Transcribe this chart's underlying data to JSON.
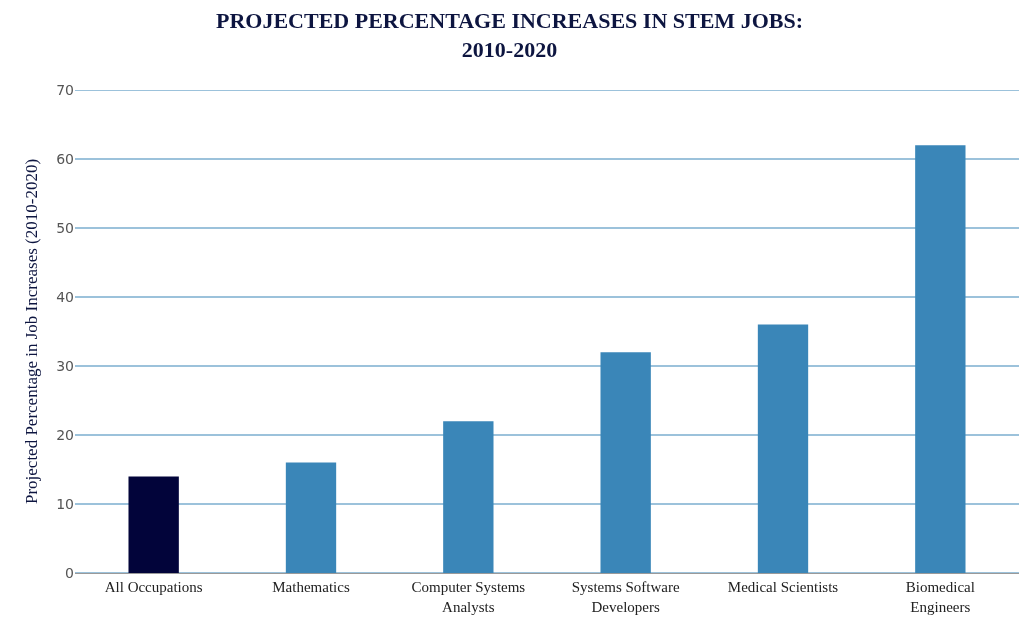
{
  "chart_data": {
    "type": "bar",
    "title": "PROJECTED PERCENTAGE INCREASES IN STEM JOBS: 2010-2020",
    "ylabel": "Projected Percentage in Job Increases (2010-2020)",
    "categories": [
      "All Occupations",
      "Mathematics",
      "Computer Systems Analysts",
      "Systems Software Developers",
      "Medical Scientists",
      "Biomedical Engineers"
    ],
    "values": [
      14,
      16,
      22,
      32,
      36,
      62
    ],
    "colors": [
      "#02043a",
      "#3a86b8",
      "#3a86b8",
      "#3a86b8",
      "#3a86b8",
      "#3a86b8"
    ],
    "ylim": [
      0,
      70
    ],
    "yticks": [
      0,
      10,
      20,
      30,
      40,
      50,
      60,
      70
    ],
    "grid": "y"
  }
}
